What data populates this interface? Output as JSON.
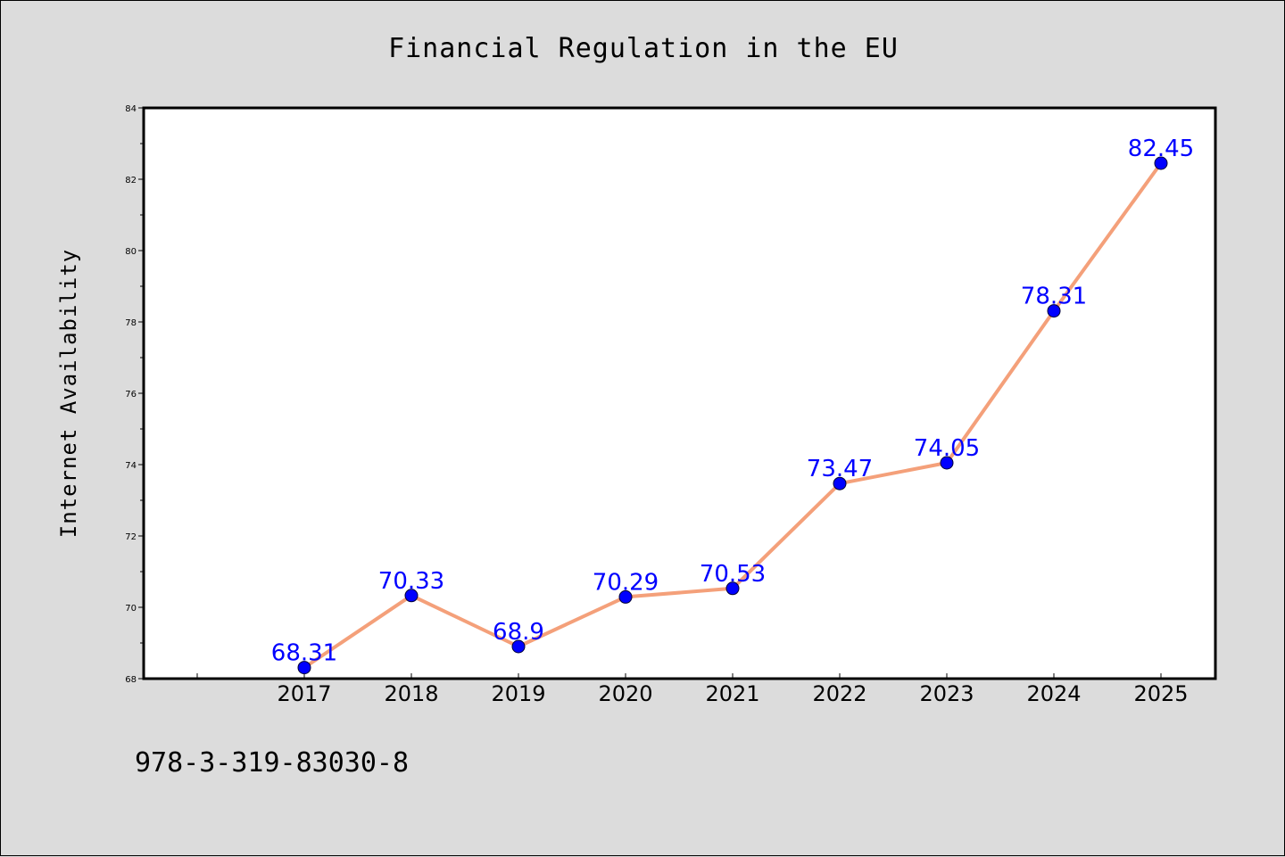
{
  "chart_data": {
    "type": "line",
    "title": "Financial Regulation in the EU",
    "xlabel": "",
    "ylabel": "Internet Availability",
    "categories": [
      "2017",
      "2018",
      "2019",
      "2020",
      "2021",
      "2022",
      "2023",
      "2024",
      "2025"
    ],
    "series": [
      {
        "values": [
          68.31,
          70.33,
          68.9,
          70.29,
          70.53,
          73.47,
          74.05,
          78.31,
          82.45
        ],
        "data_labels": [
          "68.31",
          "70.33",
          "68.9",
          "70.29",
          "70.53",
          "73.47",
          "74.05",
          "78.31",
          "82.45"
        ]
      }
    ],
    "ylim": [
      68,
      84
    ],
    "yticks": [
      "68",
      "70",
      "72",
      "74",
      "76",
      "78",
      "80",
      "82",
      "84"
    ],
    "grid": false,
    "legend": "none",
    "colors": {
      "line": "#f4a07a",
      "marker": "#0000ff",
      "data_label": "#0000ff",
      "background": "#dcdcdc",
      "plot_background": "#ffffff"
    }
  },
  "annotation": {
    "isbn": "978-3-319-83030-8"
  }
}
